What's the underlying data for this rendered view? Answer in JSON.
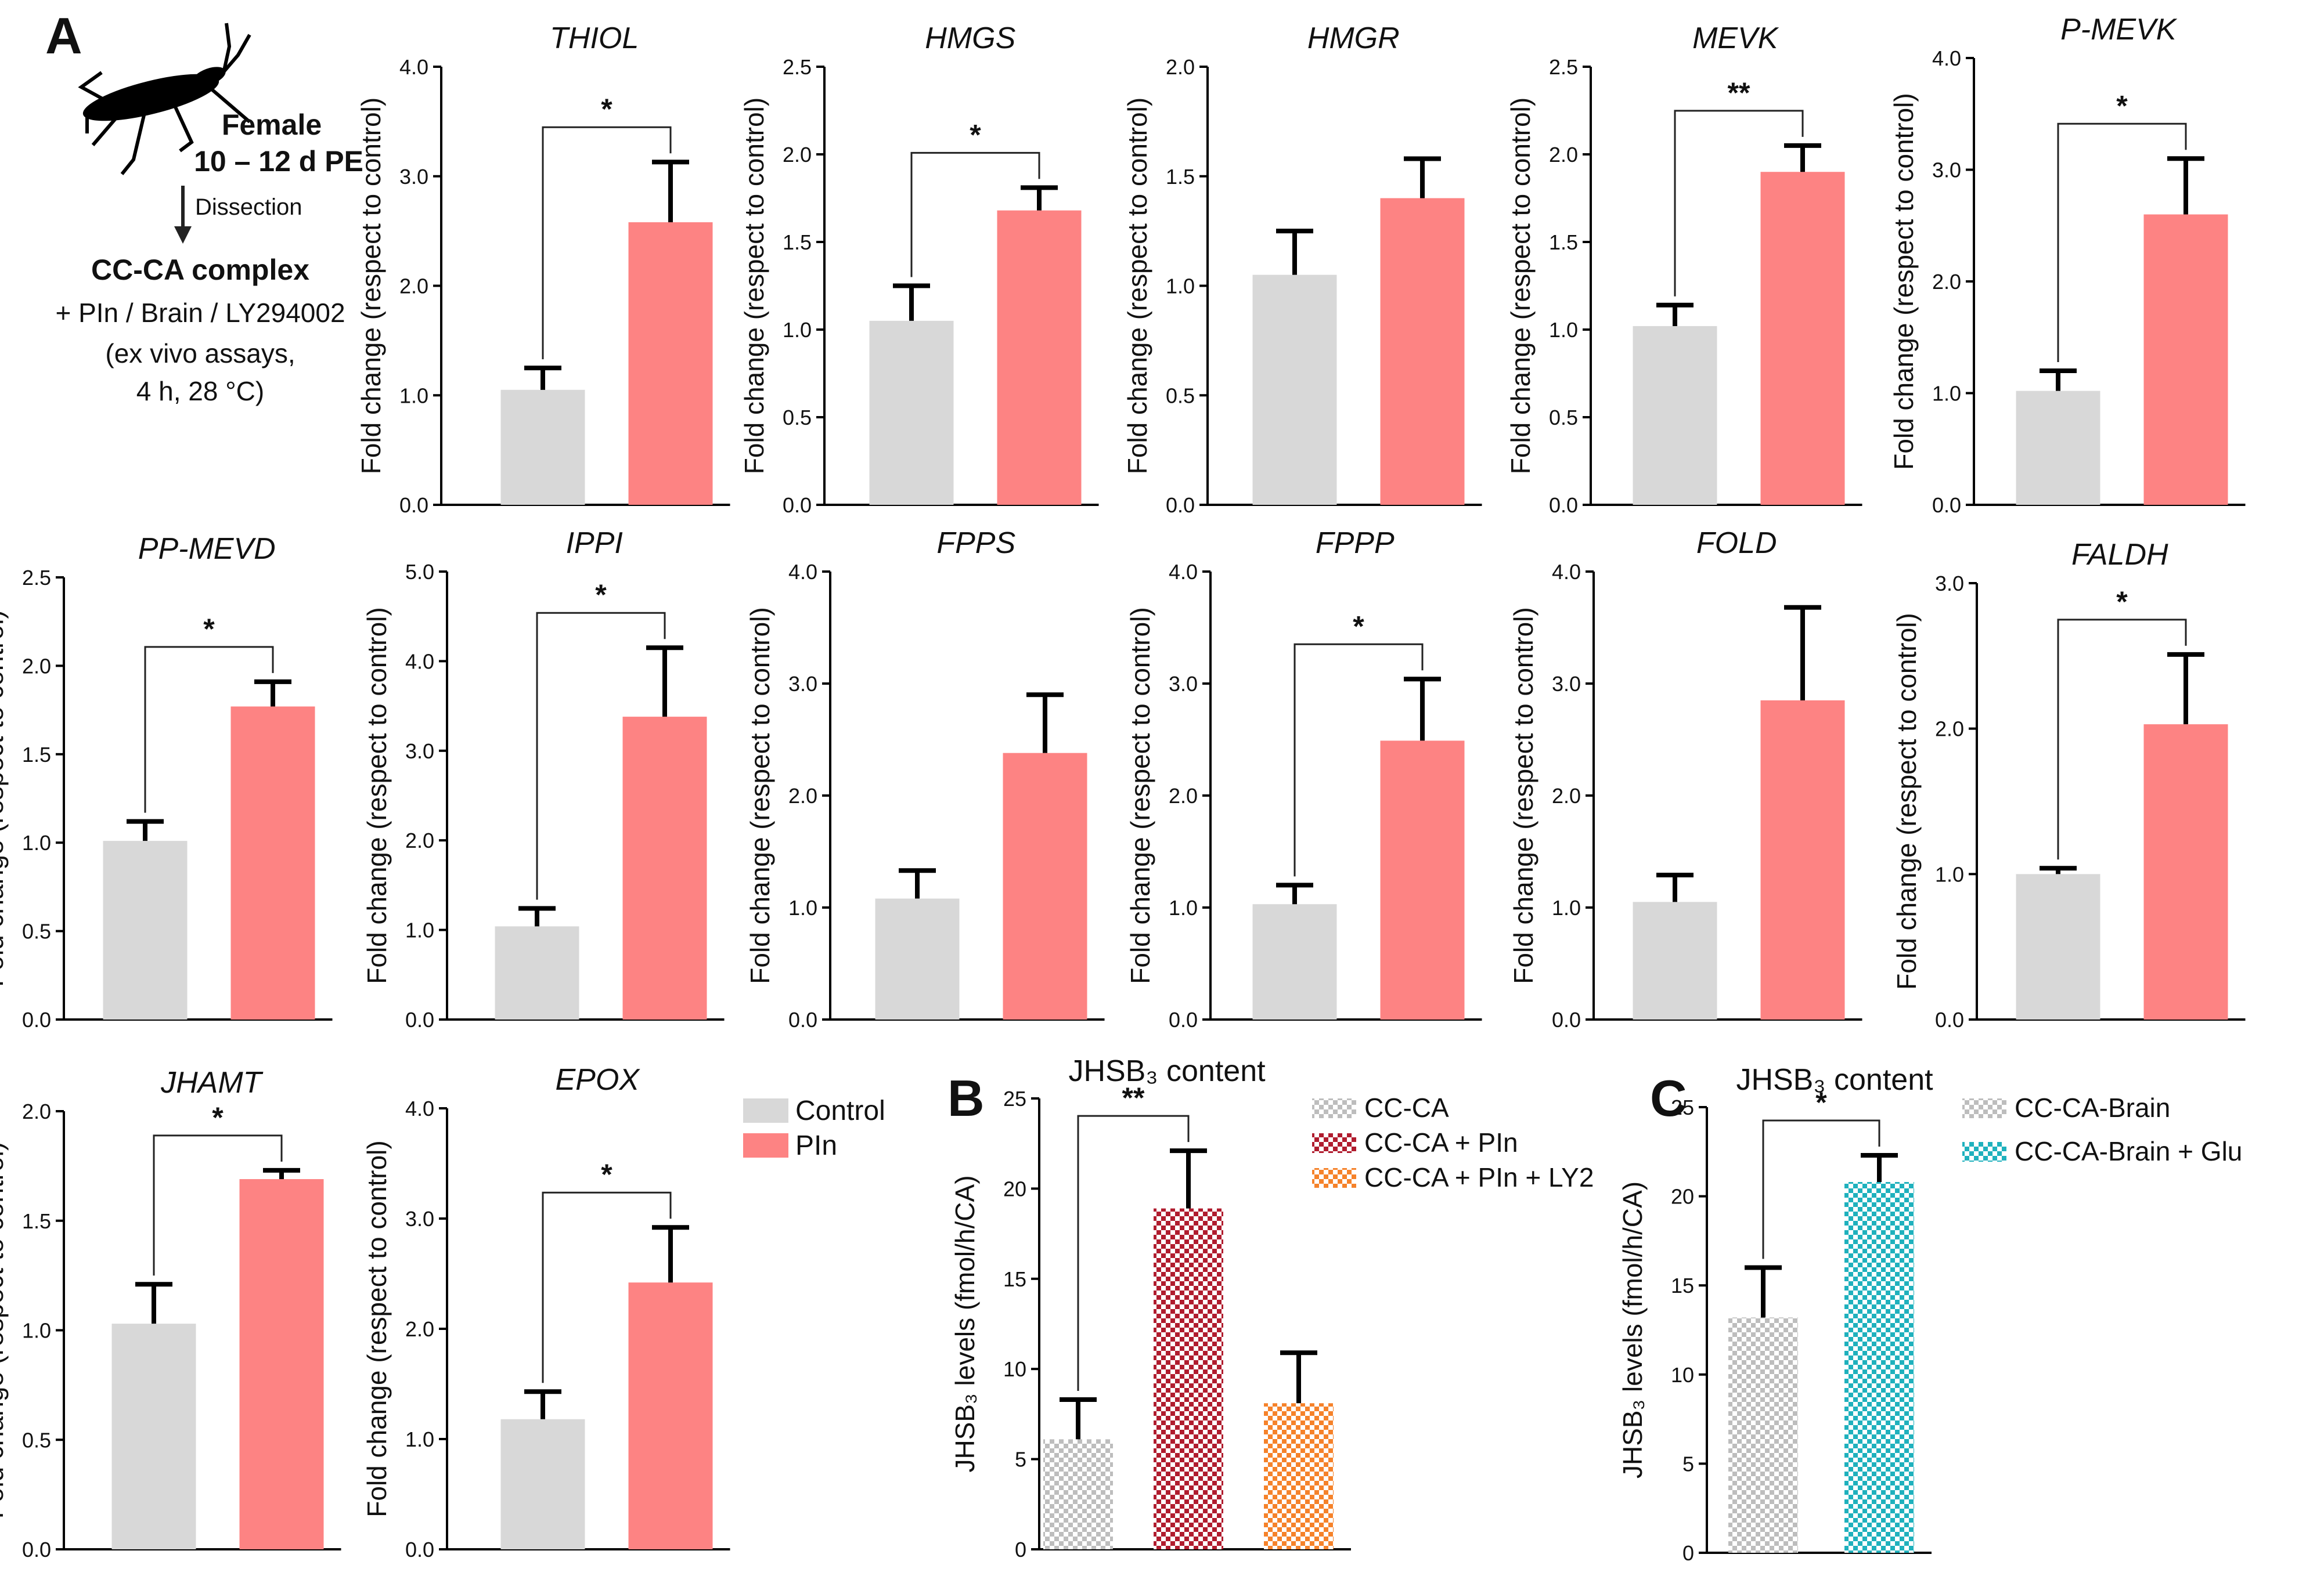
{
  "panels": {
    "a": "A",
    "b": "B",
    "c": "C"
  },
  "schema": {
    "sex": "Female",
    "age": "10 – 12 d PE",
    "step": "Dissection",
    "tissue": "CC-CA complex",
    "treatment": "+ PIn / Brain / LY294002",
    "assay1": "(ex vivo assays,",
    "assay2": "4 h, 28 °C)"
  },
  "colors": {
    "control": "#d8d8d8",
    "pin": "#fd8383",
    "axis": "#000000"
  },
  "legend_a": {
    "control": "Control",
    "pin": "PIn"
  },
  "chart_data": [
    {
      "type": "bar",
      "title": "THIOL",
      "ylabel": "Fold change (respect to control)",
      "categories": [
        "Control",
        "PIn"
      ],
      "values": [
        1.05,
        2.58
      ],
      "errors": [
        0.2,
        0.55
      ],
      "ylim": [
        0,
        4
      ],
      "ticks": [
        "0.0",
        "1.0",
        "2.0",
        "3.0",
        "4.0"
      ],
      "significance": "*"
    },
    {
      "type": "bar",
      "title": "HMGS",
      "ylabel": "Fold change (respect to control)",
      "categories": [
        "Control",
        "PIn"
      ],
      "values": [
        1.05,
        1.68
      ],
      "errors": [
        0.2,
        0.13
      ],
      "ylim": [
        0,
        2.5
      ],
      "ticks": [
        "0.0",
        "0.5",
        "1.0",
        "1.5",
        "2.0",
        "2.5"
      ],
      "significance": "*"
    },
    {
      "type": "bar",
      "title": "HMGR",
      "ylabel": "Fold change (respect to control)",
      "categories": [
        "Control",
        "PIn"
      ],
      "values": [
        1.05,
        1.4
      ],
      "errors": [
        0.2,
        0.18
      ],
      "ylim": [
        0,
        2
      ],
      "ticks": [
        "0.0",
        "0.5",
        "1.0",
        "1.5",
        "2.0"
      ],
      "significance": ""
    },
    {
      "type": "bar",
      "title": "MEVK",
      "ylabel": "Fold change (respect to control)",
      "categories": [
        "Control",
        "PIn"
      ],
      "values": [
        1.02,
        1.9
      ],
      "errors": [
        0.12,
        0.15
      ],
      "ylim": [
        0,
        2.5
      ],
      "ticks": [
        "0.0",
        "0.5",
        "1.0",
        "1.5",
        "2.0",
        "2.5"
      ],
      "significance": "**"
    },
    {
      "type": "bar",
      "title": "P-MEVK",
      "ylabel": "Fold change (respect to control)",
      "categories": [
        "Control",
        "PIn"
      ],
      "values": [
        1.02,
        2.6
      ],
      "errors": [
        0.18,
        0.5
      ],
      "ylim": [
        0,
        4
      ],
      "ticks": [
        "0.0",
        "1.0",
        "2.0",
        "3.0",
        "4.0"
      ],
      "significance": "*"
    },
    {
      "type": "bar",
      "title": "PP-MEVD",
      "ylabel": "Fold change (respect to control)",
      "categories": [
        "Control",
        "PIn"
      ],
      "values": [
        1.01,
        1.77
      ],
      "errors": [
        0.11,
        0.14
      ],
      "ylim": [
        0,
        2.5
      ],
      "ticks": [
        "0.0",
        "0.5",
        "1.0",
        "1.5",
        "2.0",
        "2.5"
      ],
      "significance": "*"
    },
    {
      "type": "bar",
      "title": "IPPI",
      "ylabel": "Fold change (respect to control)",
      "categories": [
        "Control",
        "PIn"
      ],
      "values": [
        1.04,
        3.38
      ],
      "errors": [
        0.2,
        0.77
      ],
      "ylim": [
        0,
        5
      ],
      "ticks": [
        "0.0",
        "1.0",
        "2.0",
        "3.0",
        "4.0",
        "5.0"
      ],
      "significance": "*"
    },
    {
      "type": "bar",
      "title": "FPPS",
      "ylabel": "Fold change (respect to control)",
      "categories": [
        "Control",
        "PIn"
      ],
      "values": [
        1.08,
        2.38
      ],
      "errors": [
        0.25,
        0.52
      ],
      "ylim": [
        0,
        4
      ],
      "ticks": [
        "0.0",
        "1.0",
        "2.0",
        "3.0",
        "4.0"
      ],
      "significance": ""
    },
    {
      "type": "bar",
      "title": "FPPP",
      "ylabel": "Fold change (respect to control)",
      "categories": [
        "Control",
        "PIn"
      ],
      "values": [
        1.03,
        2.49
      ],
      "errors": [
        0.17,
        0.55
      ],
      "ylim": [
        0,
        4
      ],
      "ticks": [
        "0.0",
        "1.0",
        "2.0",
        "3.0",
        "4.0"
      ],
      "significance": "*"
    },
    {
      "type": "bar",
      "title": "FOLD",
      "ylabel": "Fold change (respect to control)",
      "categories": [
        "Control",
        "PIn"
      ],
      "values": [
        1.05,
        2.85
      ],
      "errors": [
        0.24,
        0.83
      ],
      "ylim": [
        0,
        4
      ],
      "ticks": [
        "0.0",
        "1.0",
        "2.0",
        "3.0",
        "4.0"
      ],
      "significance": ""
    },
    {
      "type": "bar",
      "title": "FALDH",
      "ylabel": "Fold change (respect to control)",
      "categories": [
        "Control",
        "PIn"
      ],
      "values": [
        1.0,
        2.03
      ],
      "errors": [
        0.04,
        0.48
      ],
      "ylim": [
        0,
        3
      ],
      "ticks": [
        "0.0",
        "1.0",
        "2.0",
        "3.0"
      ],
      "significance": "*"
    },
    {
      "type": "bar",
      "title": "JHAMT",
      "ylabel": "Fold change (respect to control)",
      "categories": [
        "Control",
        "PIn"
      ],
      "values": [
        1.03,
        1.69
      ],
      "errors": [
        0.18,
        0.04
      ],
      "ylim": [
        0,
        2
      ],
      "ticks": [
        "0.0",
        "0.5",
        "1.0",
        "1.5",
        "2.0"
      ],
      "significance": "*"
    },
    {
      "type": "bar",
      "title": "EPOX",
      "ylabel": "Fold change (respect to control)",
      "categories": [
        "Control",
        "PIn"
      ],
      "values": [
        1.18,
        2.42
      ],
      "errors": [
        0.25,
        0.5
      ],
      "ylim": [
        0,
        4
      ],
      "ticks": [
        "0.0",
        "1.0",
        "2.0",
        "3.0",
        "4.0"
      ],
      "significance": "*"
    },
    {
      "type": "bar",
      "title": "JHSB₃ content",
      "ylabel": "JHSB₃ levels (fmol/h/CA)",
      "categories": [
        "CC-CA",
        "CC-CA + PIn",
        "CC-CA + PIn + LY2"
      ],
      "values": [
        6.1,
        18.9,
        8.1
      ],
      "errors": [
        2.2,
        3.2,
        2.8
      ],
      "colors": [
        "#bdbdbd",
        "#b01c2e",
        "#f5822a"
      ],
      "ylim": [
        0,
        25
      ],
      "ticks": [
        "0",
        "5",
        "10",
        "15",
        "20",
        "25"
      ],
      "significance": "**"
    },
    {
      "type": "bar",
      "title": "JHSB₃ content",
      "ylabel": "JHSB₃ levels (fmol/h/CA)",
      "categories": [
        "CC-CA-Brain",
        "CC-CA-Brain + Glu"
      ],
      "values": [
        13.2,
        20.8
      ],
      "errors": [
        2.8,
        1.5
      ],
      "colors": [
        "#bdbdbd",
        "#1fb1bd"
      ],
      "ylim": [
        0,
        25
      ],
      "ticks": [
        "0",
        "5",
        "10",
        "15",
        "20",
        "25"
      ],
      "significance": "*"
    }
  ]
}
